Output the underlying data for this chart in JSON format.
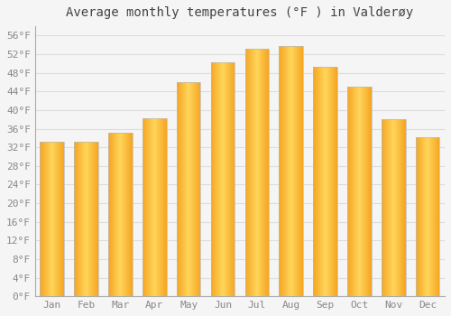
{
  "months": [
    "Jan",
    "Feb",
    "Mar",
    "Apr",
    "May",
    "Jun",
    "Jul",
    "Aug",
    "Sep",
    "Oct",
    "Nov",
    "Dec"
  ],
  "values": [
    33.1,
    33.1,
    35.2,
    38.3,
    46.0,
    50.2,
    53.2,
    53.8,
    49.3,
    45.0,
    38.1,
    34.2
  ],
  "bar_color_edge": "#F5A623",
  "bar_color_center": "#FFD55A",
  "bar_edge_color": "#BBBBBB",
  "title": "Average monthly temperatures (°F ) in Valderøy",
  "ylim_min": 0,
  "ylim_max": 58,
  "ytick_step": 4,
  "background_color": "#f5f5f5",
  "plot_bg_color": "#f5f5f5",
  "grid_color": "#dddddd",
  "title_fontsize": 10,
  "tick_fontsize": 8,
  "tick_color": "#888888",
  "spine_color": "#aaaaaa",
  "bar_width": 0.7
}
